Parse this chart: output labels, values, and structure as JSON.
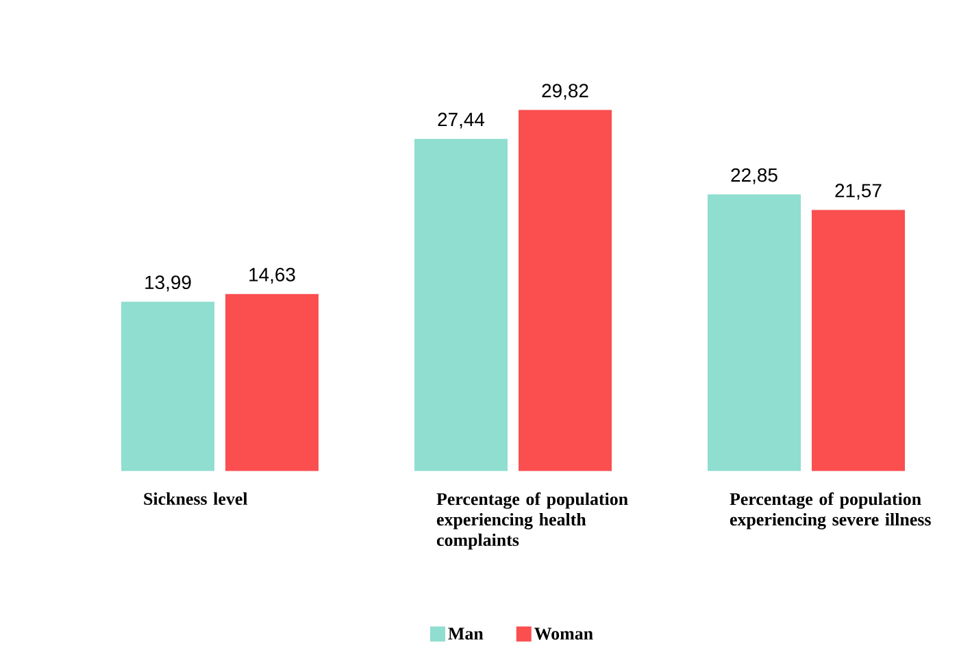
{
  "chart_data": {
    "type": "bar",
    "categories": [
      "Sickness level",
      "Percentage of population experiencing health complaints",
      "Percentage of population experiencing severe illness"
    ],
    "series": [
      {
        "name": "Man",
        "color": "#8fdecf",
        "values": [
          13.99,
          27.44,
          22.85
        ],
        "value_labels": [
          "13,99",
          "27,44",
          "22,85"
        ]
      },
      {
        "name": "Woman",
        "color": "#fa4e4f",
        "values": [
          14.63,
          29.82,
          21.57
        ],
        "value_labels": [
          "14,63",
          "29,82",
          "21,57"
        ]
      }
    ],
    "legend": "bottom"
  }
}
